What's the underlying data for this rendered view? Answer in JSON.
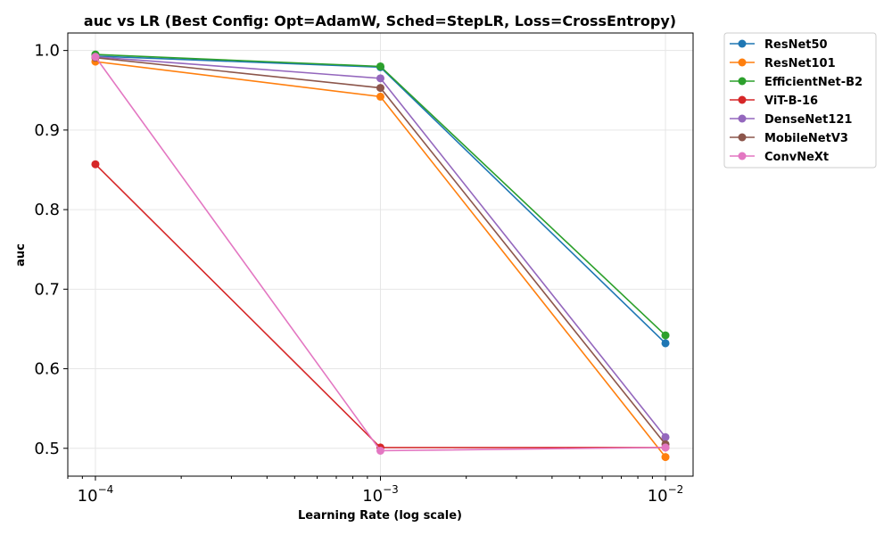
{
  "chart_data": {
    "type": "line",
    "title": "auc vs LR (Best Config: Opt=AdamW, Sched=StepLR, Loss=CrossEntropy)",
    "xlabel": "Learning Rate (log scale)",
    "ylabel": "auc",
    "xscale": "log",
    "x": [
      0.0001,
      0.001,
      0.01
    ],
    "xtick_labels": [
      {
        "base": "10",
        "exp": "−4"
      },
      {
        "base": "10",
        "exp": "−3"
      },
      {
        "base": "10",
        "exp": "−2"
      }
    ],
    "xlim": [
      8e-05,
      0.0125
    ],
    "ylim": [
      0.465,
      1.022
    ],
    "yticks": [
      0.5,
      0.6,
      0.7,
      0.8,
      0.9,
      1.0
    ],
    "ytick_labels": [
      "0.5",
      "0.6",
      "0.7",
      "0.8",
      "0.9",
      "1.0"
    ],
    "grid": true,
    "legend_position": "outside-top-right",
    "series": [
      {
        "name": "ResNet50",
        "color": "#1f77b4",
        "values": [
          0.993,
          0.979,
          0.632
        ]
      },
      {
        "name": "ResNet101",
        "color": "#ff7f0e",
        "values": [
          0.986,
          0.942,
          0.489
        ]
      },
      {
        "name": "EfficientNet-B2",
        "color": "#2ca02c",
        "values": [
          0.995,
          0.98,
          0.642
        ]
      },
      {
        "name": "ViT-B-16",
        "color": "#d62728",
        "values": [
          0.857,
          0.501,
          0.501
        ]
      },
      {
        "name": "DenseNet121",
        "color": "#9467bd",
        "values": [
          0.992,
          0.965,
          0.514
        ]
      },
      {
        "name": "MobileNetV3",
        "color": "#8c564b",
        "values": [
          0.991,
          0.953,
          0.505
        ]
      },
      {
        "name": "ConvNeXt",
        "color": "#e377c2",
        "values": [
          0.992,
          0.497,
          0.501
        ]
      }
    ]
  }
}
